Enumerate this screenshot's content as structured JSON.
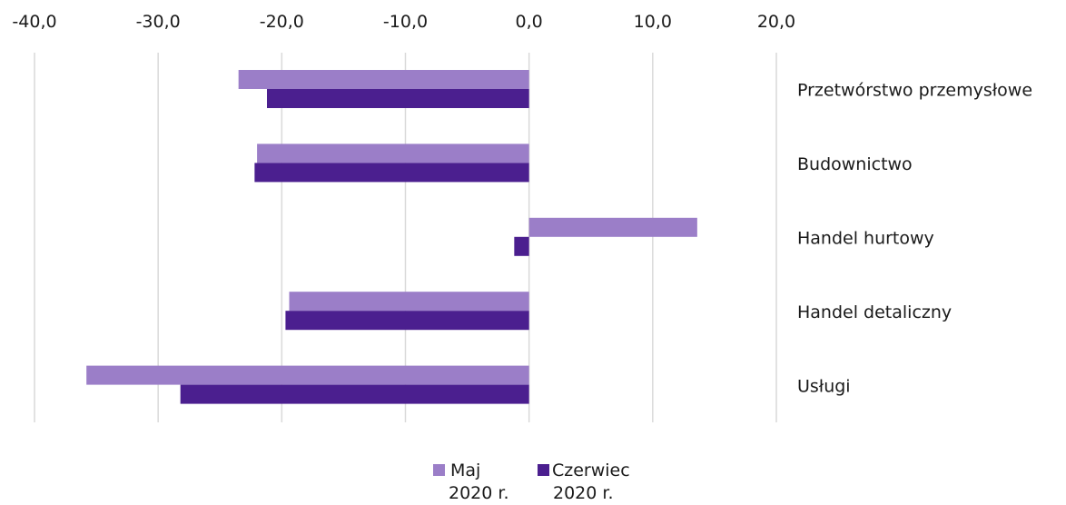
{
  "chart_data": {
    "type": "bar",
    "orientation": "horizontal",
    "categories": [
      "Przetwórstwo przemysłowe",
      "Budownictwo",
      "Handel hurtowy",
      "Handel detaliczny",
      "Usługi"
    ],
    "series": [
      {
        "name": "Maj 2020 r.",
        "name_lines": [
          "Maj",
          "2020 r."
        ],
        "color": "#9b7ec8",
        "values": [
          -23.5,
          -22.0,
          13.6,
          -19.4,
          -35.8
        ]
      },
      {
        "name": "Czerwiec 2020 r.",
        "name_lines": [
          "Czerwiec",
          "2020 r."
        ],
        "color": "#4b1f8f",
        "values": [
          -21.2,
          -22.2,
          -1.2,
          -19.7,
          -28.2
        ]
      }
    ],
    "xlim": [
      -40,
      20
    ],
    "xticks": [
      -40,
      -30,
      -20,
      -10,
      0,
      10,
      20
    ],
    "tick_labels": [
      "-40,0",
      "-30,0",
      "-20,0",
      "-10,0",
      "0,0",
      "10,0",
      "20,0"
    ],
    "axis_position": "top",
    "grid": true,
    "legend_position": "bottom",
    "gridline_color": "#d9d9d9"
  }
}
